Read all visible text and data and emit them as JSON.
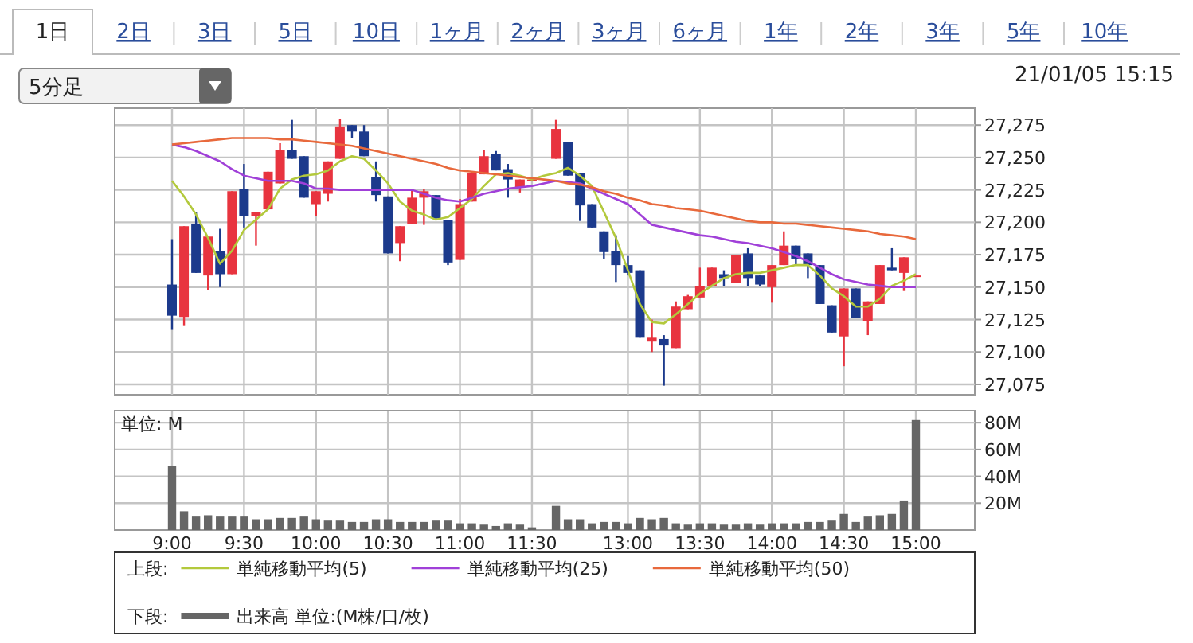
{
  "chart_data": [
    {
      "type": "candlestick",
      "annotations": [
        "1日",
        "2日",
        "3日",
        "5日",
        "10日",
        "1ヶ月",
        "2ヶ月",
        "3ヶ月",
        "6ヶ月",
        "1年",
        "2年",
        "3年",
        "5年",
        "10年",
        "5分足",
        "21/01/05 15:15"
      ],
      "categories": [
        null,
        null,
        null,
        null,
        null,
        null,
        null,
        null,
        null,
        null,
        null,
        null,
        null,
        null,
        null,
        null,
        null,
        null,
        null,
        null,
        null,
        null,
        null,
        null,
        null,
        null,
        null,
        null,
        null,
        null,
        null,
        null,
        null,
        null,
        null,
        null,
        null,
        null,
        null,
        null,
        null,
        null,
        null,
        null,
        null,
        null,
        null,
        null,
        null,
        null,
        null,
        null,
        null,
        null,
        null,
        null,
        null,
        null,
        null,
        null,
        null,
        null,
        null
      ],
      "ohlc": [
        [
          27152,
          27187,
          27117,
          27128
        ],
        [
          27127,
          27197,
          27120,
          27197
        ],
        [
          27199,
          27208,
          27161,
          27161
        ],
        [
          27159,
          27189,
          27148,
          27189
        ],
        [
          27178,
          27195,
          27150,
          27160
        ],
        [
          27160,
          27224,
          27160,
          27224
        ],
        [
          27226,
          27245,
          27196,
          27205
        ],
        [
          27205,
          27208,
          27182,
          27208
        ],
        [
          27210,
          27239,
          27210,
          27239
        ],
        [
          27230,
          27261,
          27230,
          27256
        ],
        [
          27256,
          27279,
          27249,
          27249
        ],
        [
          27251,
          27251,
          27219,
          27219
        ],
        [
          27214,
          27224,
          27205,
          27224
        ],
        [
          27222,
          27247,
          27216,
          27247
        ],
        [
          27249,
          27280,
          27249,
          27274
        ],
        [
          27275,
          27275,
          27265,
          27270
        ],
        [
          27270,
          27275,
          27251,
          27251
        ],
        [
          27235,
          27247,
          27216,
          27221
        ],
        [
          27220,
          27220,
          27176,
          27176
        ],
        [
          27184,
          27197,
          27170,
          27197
        ],
        [
          27199,
          27226,
          27199,
          27219
        ],
        [
          27219,
          27226,
          27198,
          27224
        ],
        [
          27221,
          27221,
          27203,
          27203
        ],
        [
          27202,
          27202,
          27167,
          27169
        ],
        [
          27171,
          27218,
          27171,
          27214
        ],
        [
          27216,
          27238,
          27216,
          27238
        ],
        [
          27237,
          27256,
          27237,
          27251
        ],
        [
          27253,
          27255,
          27240,
          27240
        ],
        [
          27241,
          27245,
          27219,
          27233
        ],
        [
          27227,
          27233,
          27223,
          27233
        ],
        [
          27233,
          27233,
          27233,
          27233
        ],
        null,
        [
          27249,
          27279,
          27249,
          27272
        ],
        [
          27262,
          27262,
          27236,
          27236
        ],
        [
          27238,
          27238,
          27201,
          27213
        ],
        [
          27214,
          27214,
          27196,
          27196
        ],
        [
          27193,
          27193,
          27172,
          27177
        ],
        [
          27178,
          27190,
          27154,
          27167
        ],
        [
          27167,
          27174,
          27159,
          27161
        ],
        [
          27163,
          27163,
          27111,
          27111
        ],
        [
          27108,
          27125,
          27100,
          27111
        ],
        [
          27110,
          27113,
          27074,
          27105
        ],
        [
          27103,
          27139,
          27103,
          27135
        ],
        [
          27133,
          27144,
          27133,
          27143
        ],
        [
          27142,
          27165,
          27142,
          27151
        ],
        [
          27151,
          27165,
          27151,
          27165
        ],
        [
          27160,
          27163,
          27151,
          27157
        ],
        [
          27153,
          27175,
          27153,
          27175
        ],
        [
          27176,
          27180,
          27151,
          27157
        ],
        [
          27159,
          27159,
          27151,
          27152
        ],
        [
          27150,
          27167,
          27138,
          27167
        ],
        [
          27167,
          27193,
          27167,
          27182
        ],
        [
          27182,
          27182,
          27167,
          27172
        ],
        [
          27176,
          27176,
          27157,
          27167
        ],
        [
          27167,
          27167,
          27137,
          27137
        ],
        [
          27136,
          27136,
          27115,
          27115
        ],
        [
          27112,
          27149,
          27089,
          27149
        ],
        [
          27149,
          27149,
          27126,
          27126
        ],
        [
          27124,
          27139,
          27113,
          27139
        ],
        [
          27137,
          27167,
          27137,
          27167
        ],
        [
          27165,
          27180,
          27163,
          27163
        ],
        [
          27161,
          27173,
          27147,
          27173
        ],
        [
          27159,
          27159,
          27159,
          27159
        ]
      ],
      "series": [
        {
          "name": "単純移動平均(5)",
          "type": "line",
          "color": "#b3c93c",
          "values": [
            27232,
            27220,
            27206,
            27188,
            27168,
            27178,
            27194,
            27202,
            27210,
            27226,
            27233,
            27236,
            27237,
            27240,
            27247,
            27251,
            27249,
            27240,
            27230,
            27216,
            27209,
            27206,
            27202,
            27204,
            27211,
            27218,
            27228,
            27237,
            27238,
            27236,
            27233,
            27236,
            27238,
            27242,
            27236,
            27228,
            27208,
            27188,
            27163,
            27137,
            27123,
            27122,
            27129,
            27137,
            27145,
            27151,
            27157,
            27160,
            27161,
            27161,
            27163,
            27165,
            27167,
            27167,
            27159,
            27149,
            27143,
            27135,
            27135,
            27141,
            27151,
            27155,
            27160
          ]
        },
        {
          "name": "単純移動平均(25)",
          "type": "line",
          "color": "#a040d8",
          "values": [
            27260,
            27258,
            27255,
            27251,
            27247,
            27241,
            27236,
            27234,
            27232,
            27232,
            27232,
            27230,
            27226,
            27226,
            27225,
            27225,
            27225,
            27225,
            27225,
            27225,
            27225,
            27222,
            27219,
            27217,
            27216,
            27219,
            27222,
            27224,
            27226,
            27227,
            27228,
            27230,
            27232,
            27231,
            27230,
            27226,
            27222,
            27218,
            27214,
            27206,
            27198,
            27196,
            27194,
            27192,
            27190,
            27189,
            27187,
            27185,
            27184,
            27182,
            27180,
            27177,
            27174,
            27170,
            27165,
            27160,
            27156,
            27154,
            27152,
            27151,
            27150,
            27150,
            27150
          ]
        },
        {
          "name": "単純移動平均(50)",
          "type": "line",
          "color": "#e8693c",
          "values": [
            27260,
            27261,
            27262,
            27263,
            27264,
            27265,
            27265,
            27265,
            27265,
            27264,
            27264,
            27263,
            27262,
            27261,
            27260,
            27259,
            27257,
            27255,
            27253,
            27251,
            27249,
            27247,
            27245,
            27242,
            27240,
            27239,
            27238,
            27237,
            27236,
            27235,
            27234,
            27233,
            27232,
            27230,
            27229,
            27227,
            27224,
            27222,
            27219,
            27217,
            27214,
            27213,
            27211,
            27210,
            27209,
            27207,
            27205,
            27203,
            27201,
            27200,
            27200,
            27199,
            27199,
            27198,
            27197,
            27196,
            27195,
            27194,
            27193,
            27191,
            27190,
            27189,
            27187
          ]
        }
      ],
      "ylim": [
        27067,
        27288
      ],
      "yticks": [
        {
          "value": 27075,
          "label": "27,075"
        },
        {
          "value": 27100,
          "label": "27,100"
        },
        {
          "value": 27125,
          "label": "27,125"
        },
        {
          "value": 27150,
          "label": "27,150"
        },
        {
          "value": 27175,
          "label": "27,175"
        },
        {
          "value": 27200,
          "label": "27,200"
        },
        {
          "value": 27225,
          "label": "27,225"
        },
        {
          "value": 27250,
          "label": "27,250"
        },
        {
          "value": 27275,
          "label": "27,275"
        }
      ],
      "grid": true,
      "tick_labels": "y",
      "legend": "bottom",
      "legend_title": "上段:"
    },
    {
      "type": "bar",
      "annotations": [
        "単位: M"
      ],
      "categories": [
        "9:00",
        null,
        null,
        null,
        null,
        null,
        "9:30",
        null,
        null,
        null,
        null,
        null,
        "10:00",
        null,
        null,
        null,
        null,
        null,
        "10:30",
        null,
        null,
        null,
        null,
        null,
        "11:00",
        null,
        null,
        null,
        null,
        null,
        "11:30",
        null,
        null,
        null,
        null,
        null,
        null,
        null,
        "13:00",
        null,
        null,
        null,
        null,
        null,
        "13:30",
        null,
        null,
        null,
        null,
        null,
        "14:00",
        null,
        null,
        null,
        null,
        null,
        "14:30",
        null,
        null,
        null,
        null,
        null,
        "15:00"
      ],
      "series": [
        {
          "name": "出来高 単位:(M株/口/枚)",
          "color": "#666666",
          "values": [
            48,
            14,
            10,
            11,
            10,
            10,
            10,
            8,
            8,
            9,
            9,
            10,
            8,
            7,
            7,
            6,
            6,
            8,
            8,
            6,
            6,
            6,
            7,
            7,
            5,
            5,
            4,
            3,
            5,
            4,
            2,
            null,
            18,
            8,
            8,
            5,
            6,
            6,
            5,
            9,
            8,
            9,
            5,
            4,
            5,
            5,
            4,
            4,
            5,
            4,
            5,
            5,
            5,
            6,
            6,
            7,
            12,
            6,
            10,
            11,
            12,
            22,
            82
          ]
        }
      ],
      "ylim": [
        0,
        89
      ],
      "yticks": [
        {
          "value": 20,
          "label": "20M"
        },
        {
          "value": 40,
          "label": "40M"
        },
        {
          "value": 60,
          "label": "60M"
        },
        {
          "value": 80,
          "label": "80M"
        }
      ],
      "grid": true,
      "legend": "bottom",
      "legend_title": "下段:"
    }
  ]
}
